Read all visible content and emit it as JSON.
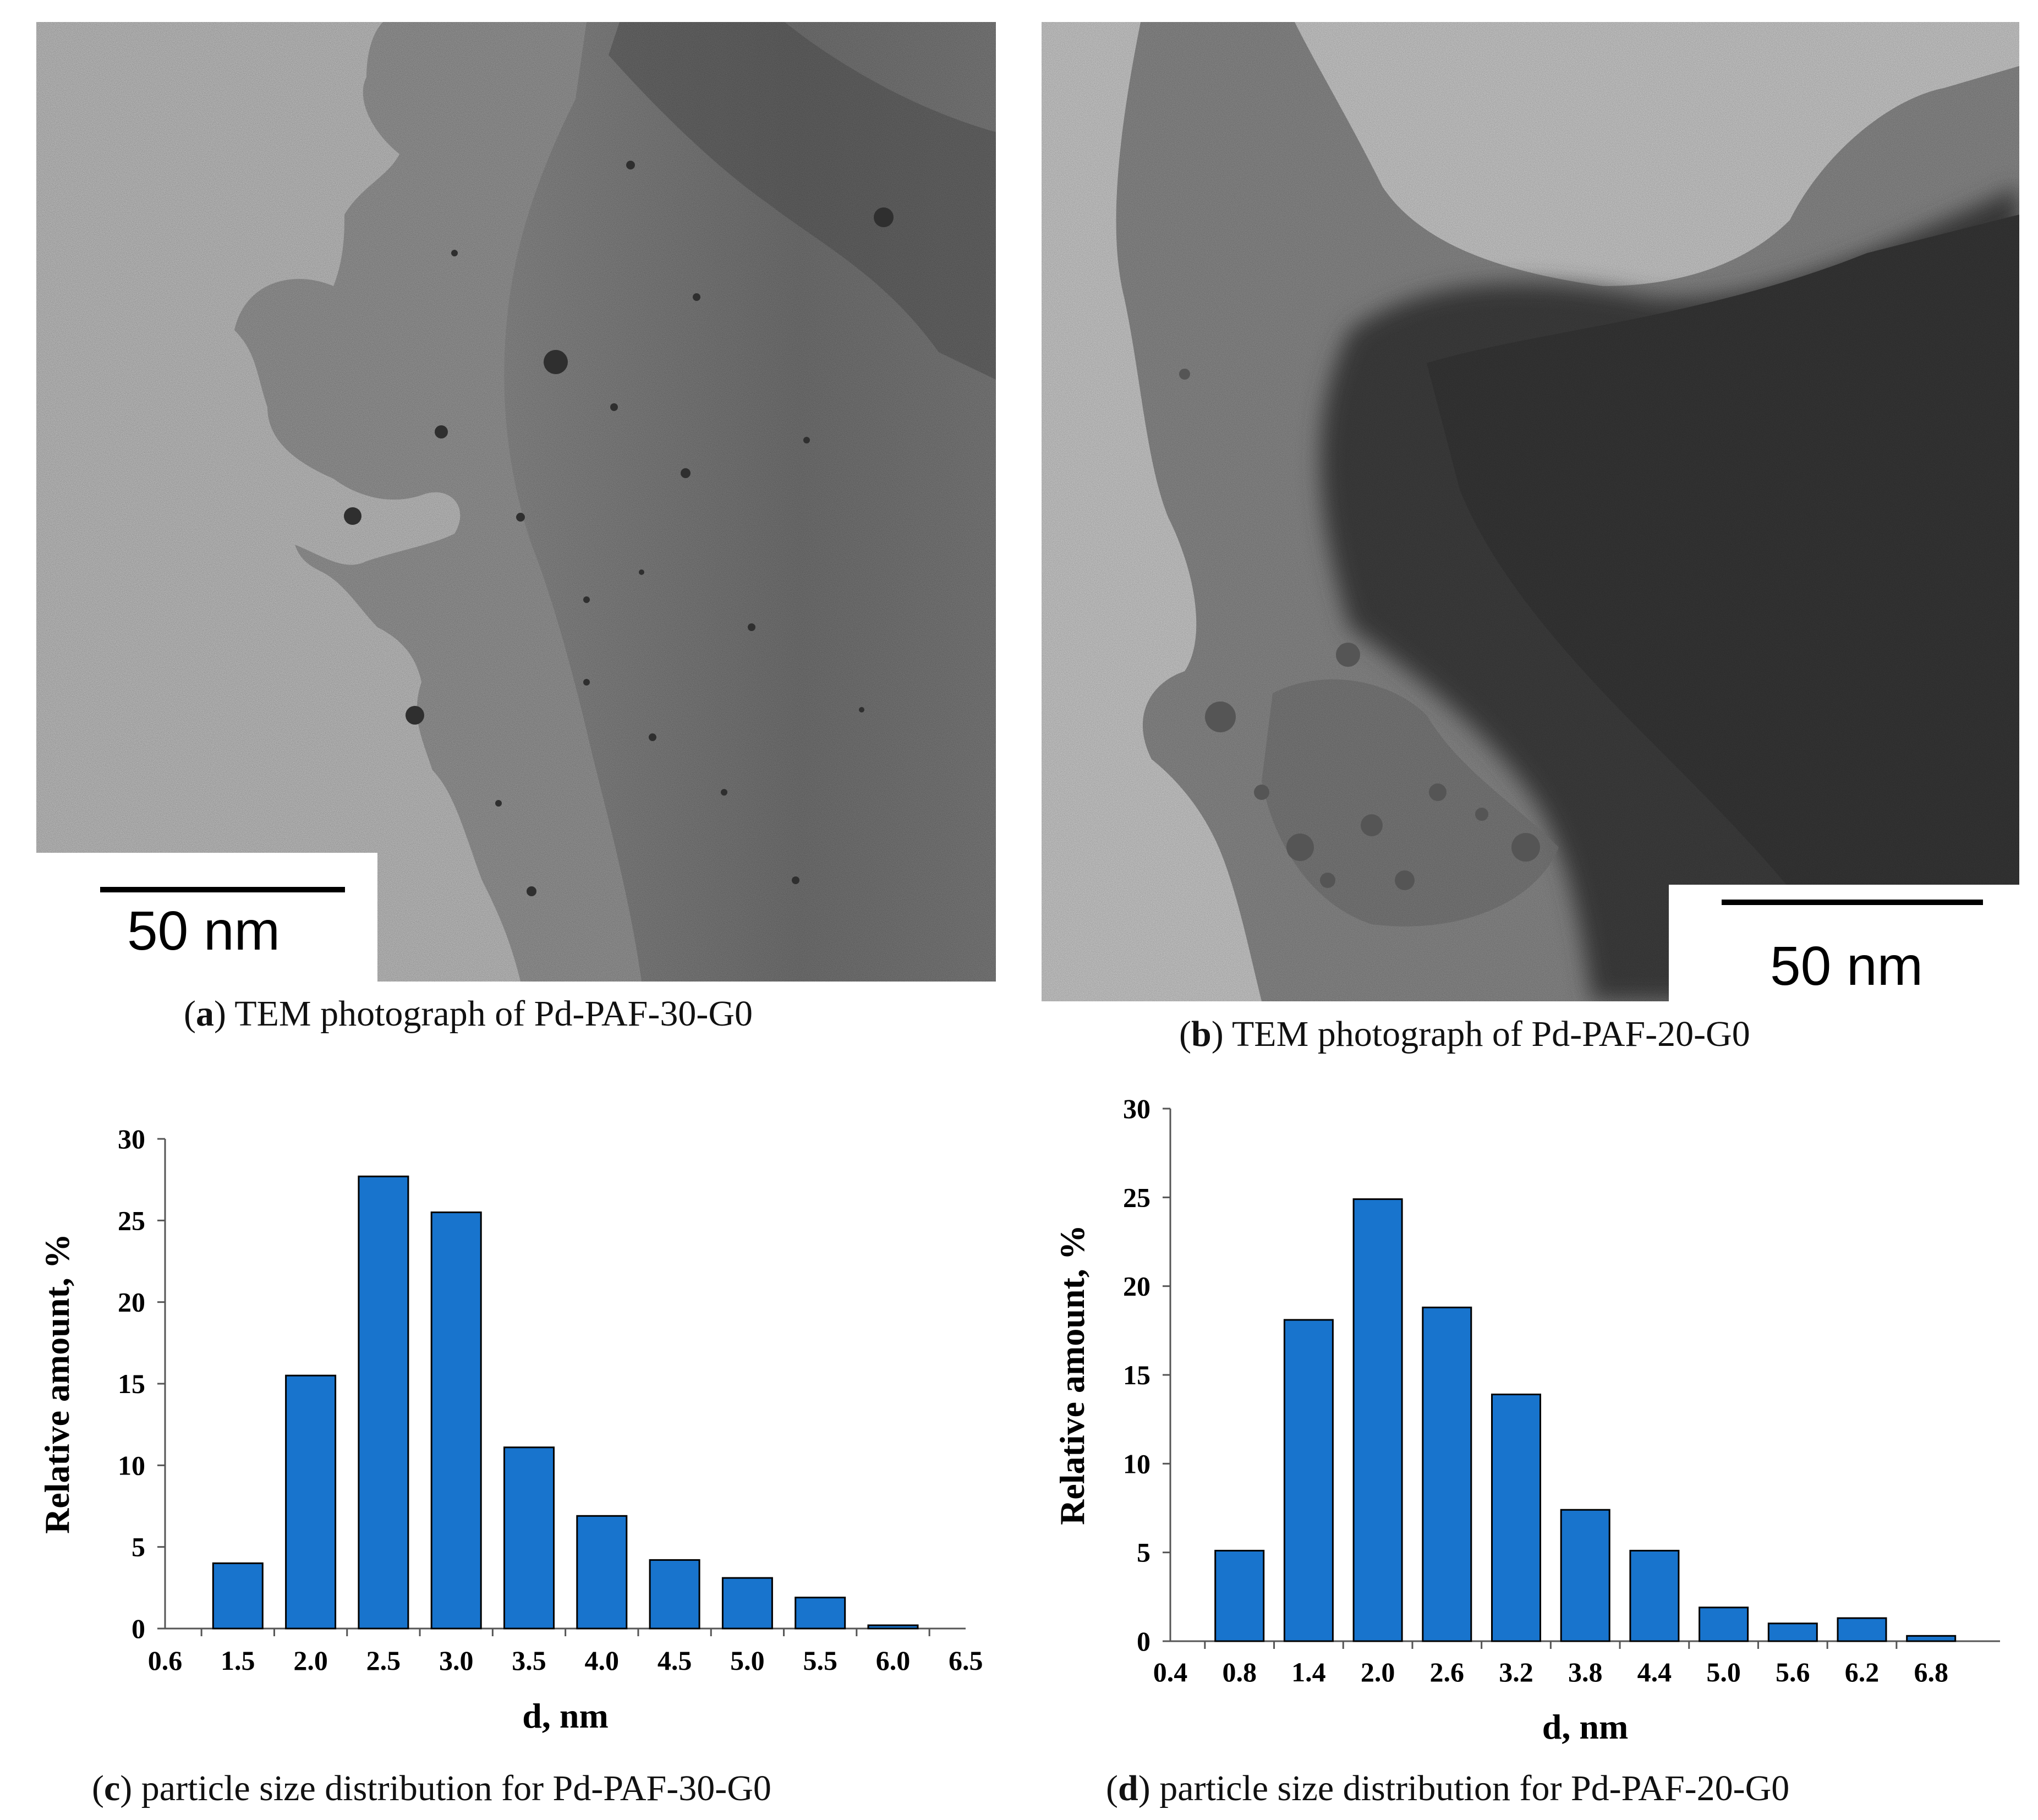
{
  "panel_a": {
    "scale_label": "50 nm",
    "caption_letter": "a",
    "caption_text": " TEM photograph of Pd-PAF-30-G0"
  },
  "panel_b": {
    "scale_label": "50 nm",
    "caption_letter": "b",
    "caption_text": " TEM photograph of Pd-PAF-20-G0"
  },
  "panel_c": {
    "caption_letter": "c",
    "caption_text": " particle size distribution for Pd-PAF-30-G0"
  },
  "panel_d": {
    "caption_letter": "d",
    "caption_text": " particle size distribution for Pd-PAF-20-G0"
  },
  "chart_data": [
    {
      "id": "c",
      "type": "bar",
      "title": "",
      "xlabel": "d, nm",
      "ylabel": "Relative amount, %",
      "x_ticks": [
        "0.6",
        "1.5",
        "2.0",
        "2.5",
        "3.0",
        "3.5",
        "4.0",
        "4.5",
        "5.0",
        "5.5",
        "6.0",
        "6.5"
      ],
      "y_ticks": [
        "0",
        "5",
        "10",
        "15",
        "20",
        "25",
        "30"
      ],
      "categories": [
        "1.5",
        "2.0",
        "2.5",
        "3.0",
        "3.5",
        "4.0",
        "4.5",
        "5.0",
        "5.5",
        "6.0"
      ],
      "values": [
        4.0,
        15.5,
        27.7,
        25.5,
        11.1,
        6.9,
        4.2,
        3.1,
        1.9,
        0.2
      ],
      "ylim": [
        0,
        30
      ],
      "bar_color": "#1874cd",
      "grid": false
    },
    {
      "id": "d",
      "type": "bar",
      "title": "",
      "xlabel": "d, nm",
      "ylabel": "Relative amount, %",
      "x_ticks": [
        "0.4",
        "0.8",
        "1.4",
        "2.0",
        "2.6",
        "3.2",
        "3.8",
        "4.4",
        "5.0",
        "5.6",
        "6.2",
        "6.8"
      ],
      "y_ticks": [
        "0",
        "5",
        "10",
        "15",
        "20",
        "25",
        "30"
      ],
      "categories": [
        "0.8",
        "1.4",
        "2.0",
        "2.6",
        "3.2",
        "3.8",
        "4.4",
        "5.0",
        "5.6",
        "6.2",
        "6.8"
      ],
      "values": [
        5.1,
        18.1,
        24.9,
        18.8,
        13.9,
        7.4,
        5.1,
        1.9,
        1.0,
        1.3,
        0.3
      ],
      "ylim": [
        0,
        30
      ],
      "bar_color": "#1874cd",
      "grid": false
    }
  ]
}
